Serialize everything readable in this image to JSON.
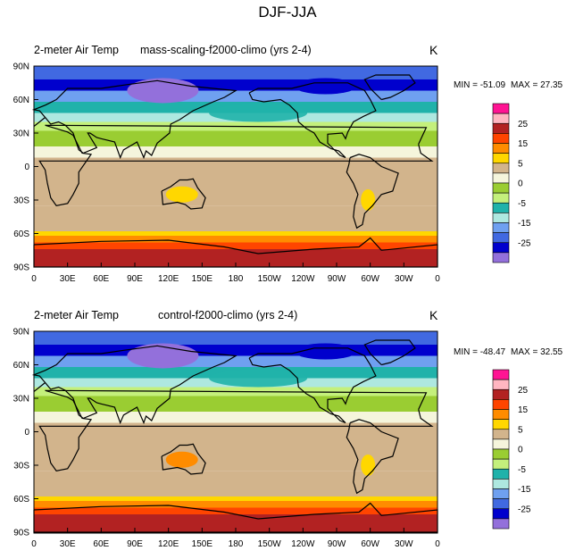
{
  "page": {
    "title": "DJF-JJA"
  },
  "colorbar": {
    "colors": [
      "#ff1493",
      "#ffb6c1",
      "#b22222",
      "#ff4500",
      "#ff8c00",
      "#ffd700",
      "#d2b48c",
      "#f5f5dc",
      "#9acd32",
      "#c4f07c",
      "#20b2aa",
      "#aee8e0",
      "#6fa0f0",
      "#4169e1",
      "#0000cd",
      "#9370db"
    ],
    "labels": [
      "25",
      "15",
      "5",
      "0",
      "-5",
      "-15",
      "-25"
    ]
  },
  "chart_data": [
    {
      "type": "heatmap",
      "left_title": "2-meter Air Temp",
      "center_title": "mass-scaling-f2000-climo (yrs 2-4)",
      "units": "K",
      "min_label": "MIN = -51.09",
      "max_label": "MAX =  27.35",
      "min": -51.09,
      "max": 27.35,
      "x_ticks": [
        "0",
        "30E",
        "60E",
        "90E",
        "120E",
        "150E",
        "180",
        "150W",
        "120W",
        "90W",
        "60W",
        "30W",
        "0"
      ],
      "y_ticks": [
        "90N",
        "60N",
        "30N",
        "0",
        "30S",
        "60S",
        "90S"
      ],
      "xlim": [
        0,
        360
      ],
      "ylim": [
        -90,
        90
      ],
      "grid": false
    },
    {
      "type": "heatmap",
      "left_title": "2-meter Air Temp",
      "center_title": "control-f2000-climo (yrs 2-4)",
      "units": "K",
      "min_label": "MIN = -48.47",
      "max_label": "MAX =  32.55",
      "min": -48.47,
      "max": 32.55,
      "x_ticks": [
        "0",
        "30E",
        "60E",
        "90E",
        "120E",
        "150E",
        "180",
        "150W",
        "120W",
        "90W",
        "60W",
        "30W",
        "0"
      ],
      "y_ticks": [
        "90N",
        "60N",
        "30N",
        "0",
        "30S",
        "60S",
        "90S"
      ],
      "xlim": [
        0,
        360
      ],
      "ylim": [
        -90,
        90
      ],
      "grid": false
    }
  ]
}
